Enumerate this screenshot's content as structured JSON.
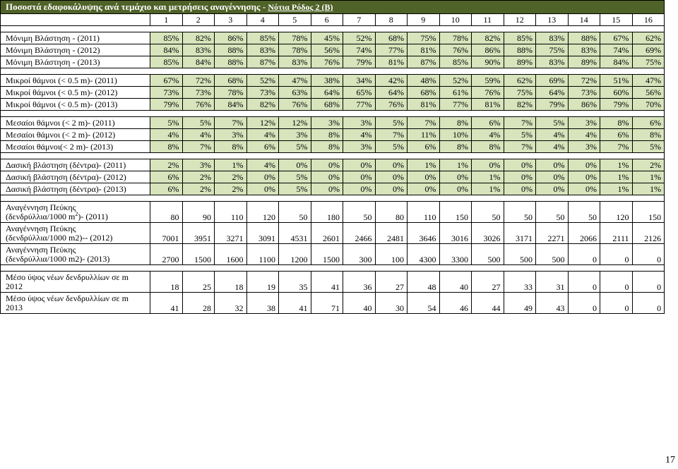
{
  "title": "Ποσοστά εδαφοκάλυψης ανά τεμάχιο και μετρήσεις αναγέννησης - ",
  "subtitle": "Νότια Ρόδος 2 (Β)",
  "columns": [
    "1",
    "2",
    "3",
    "4",
    "5",
    "6",
    "7",
    "8",
    "9",
    "10",
    "11",
    "12",
    "13",
    "14",
    "15",
    "16"
  ],
  "groups": [
    {
      "style": "green",
      "rows": [
        {
          "label": "Μόνιμη Βλάστηση - (2011)",
          "values": [
            "85%",
            "82%",
            "86%",
            "85%",
            "78%",
            "45%",
            "52%",
            "68%",
            "75%",
            "78%",
            "82%",
            "85%",
            "83%",
            "88%",
            "67%",
            "62%"
          ]
        },
        {
          "label": "Μόνιμη Βλάστηση - (2012)",
          "values": [
            "84%",
            "83%",
            "88%",
            "83%",
            "78%",
            "56%",
            "74%",
            "77%",
            "81%",
            "76%",
            "86%",
            "88%",
            "75%",
            "83%",
            "74%",
            "69%"
          ]
        },
        {
          "label": "Μόνιμη Βλάστηση - (2013)",
          "values": [
            "85%",
            "84%",
            "88%",
            "87%",
            "83%",
            "76%",
            "79%",
            "81%",
            "87%",
            "85%",
            "90%",
            "89%",
            "83%",
            "89%",
            "84%",
            "75%"
          ]
        }
      ]
    },
    {
      "style": "green",
      "rows": [
        {
          "label": "Μικροί θάμνοι (< 0.5 m)- (2011)",
          "values": [
            "67%",
            "72%",
            "68%",
            "52%",
            "47%",
            "38%",
            "34%",
            "42%",
            "48%",
            "52%",
            "59%",
            "62%",
            "69%",
            "72%",
            "51%",
            "47%"
          ]
        },
        {
          "label": "Μικροί θάμνοι (< 0.5 m)- (2012)",
          "values": [
            "73%",
            "73%",
            "78%",
            "73%",
            "63%",
            "64%",
            "65%",
            "64%",
            "68%",
            "61%",
            "76%",
            "75%",
            "64%",
            "73%",
            "60%",
            "56%"
          ]
        },
        {
          "label": "Μικροί θάμνοι (< 0.5 m)- (2013)",
          "values": [
            "79%",
            "76%",
            "84%",
            "82%",
            "76%",
            "68%",
            "77%",
            "76%",
            "81%",
            "77%",
            "81%",
            "82%",
            "79%",
            "86%",
            "79%",
            "70%"
          ]
        }
      ]
    },
    {
      "style": "green",
      "rows": [
        {
          "label": "Μεσαίοι θάμνοι (< 2 m)- (2011)",
          "values": [
            "5%",
            "5%",
            "7%",
            "12%",
            "12%",
            "3%",
            "3%",
            "5%",
            "7%",
            "8%",
            "6%",
            "7%",
            "5%",
            "3%",
            "8%",
            "6%"
          ]
        },
        {
          "label": "Μεσαίοι θάμνοι (< 2 m)- (2012)",
          "values": [
            "4%",
            "4%",
            "3%",
            "4%",
            "3%",
            "8%",
            "4%",
            "7%",
            "11%",
            "10%",
            "4%",
            "5%",
            "4%",
            "4%",
            "6%",
            "8%"
          ]
        },
        {
          "label": "Μεσαίοι θάμνοι(< 2 m)- (2013)",
          "values": [
            "8%",
            "7%",
            "8%",
            "6%",
            "5%",
            "8%",
            "3%",
            "5%",
            "6%",
            "8%",
            "8%",
            "7%",
            "4%",
            "3%",
            "7%",
            "5%"
          ]
        }
      ]
    },
    {
      "style": "green",
      "rows": [
        {
          "label": "Δασική βλάστηση (δέντρα)- (2011)",
          "values": [
            "2%",
            "3%",
            "1%",
            "4%",
            "0%",
            "0%",
            "0%",
            "0%",
            "1%",
            "1%",
            "0%",
            "0%",
            "0%",
            "0%",
            "1%",
            "2%"
          ]
        },
        {
          "label": "Δασική βλάστηση (δέντρα)- (2012)",
          "values": [
            "6%",
            "2%",
            "2%",
            "0%",
            "5%",
            "0%",
            "0%",
            "0%",
            "0%",
            "0%",
            "1%",
            "0%",
            "0%",
            "0%",
            "1%",
            "1%"
          ]
        },
        {
          "label": "Δασική βλάστηση (δέντρα)- (2013)",
          "values": [
            "6%",
            "2%",
            "2%",
            "0%",
            "5%",
            "0%",
            "0%",
            "0%",
            "0%",
            "0%",
            "1%",
            "0%",
            "0%",
            "0%",
            "1%",
            "1%"
          ]
        }
      ]
    },
    {
      "style": "white",
      "rows": [
        {
          "label": "Αναγέννηση Πεύκης",
          "label2a": "(δενδρύλλια/1000 m",
          "label2sup": "2",
          "label2b": ")- (2011)",
          "values": [
            "80",
            "90",
            "110",
            "120",
            "50",
            "180",
            "50",
            "80",
            "110",
            "150",
            "50",
            "50",
            "50",
            "50",
            "120",
            "150"
          ]
        },
        {
          "label": "Αναγέννηση Πεύκης",
          "label2a": "(δενδρύλλια/1000 m2)-- (2012)",
          "values": [
            "7001",
            "3951",
            "3271",
            "3091",
            "4531",
            "2601",
            "2466",
            "2481",
            "3646",
            "3016",
            "3026",
            "3171",
            "2271",
            "2066",
            "2111",
            "2126"
          ]
        },
        {
          "label": "Αναγέννηση Πεύκης",
          "label2a": "(δενδρύλλια/1000 m2)- (2013)",
          "values": [
            "2700",
            "1500",
            "1600",
            "1100",
            "1200",
            "1500",
            "300",
            "100",
            "4300",
            "3300",
            "500",
            "500",
            "500",
            "0",
            "0",
            "0"
          ]
        }
      ]
    },
    {
      "style": "white",
      "rows": [
        {
          "label": "Μέσο ύψος νέων δενδρυλλίων σε m",
          "label2a": "2012",
          "values": [
            "18",
            "25",
            "18",
            "19",
            "35",
            "41",
            "36",
            "27",
            "48",
            "40",
            "27",
            "33",
            "31",
            "0",
            "0",
            "0"
          ]
        },
        {
          "label": "Μέσο ύψος νέων δενδρυλλίων σε m",
          "label2a": "2013",
          "values": [
            "41",
            "28",
            "32",
            "38",
            "41",
            "71",
            "40",
            "30",
            "54",
            "46",
            "44",
            "49",
            "43",
            "0",
            "0",
            "0"
          ]
        }
      ]
    }
  ],
  "page_number": "17"
}
